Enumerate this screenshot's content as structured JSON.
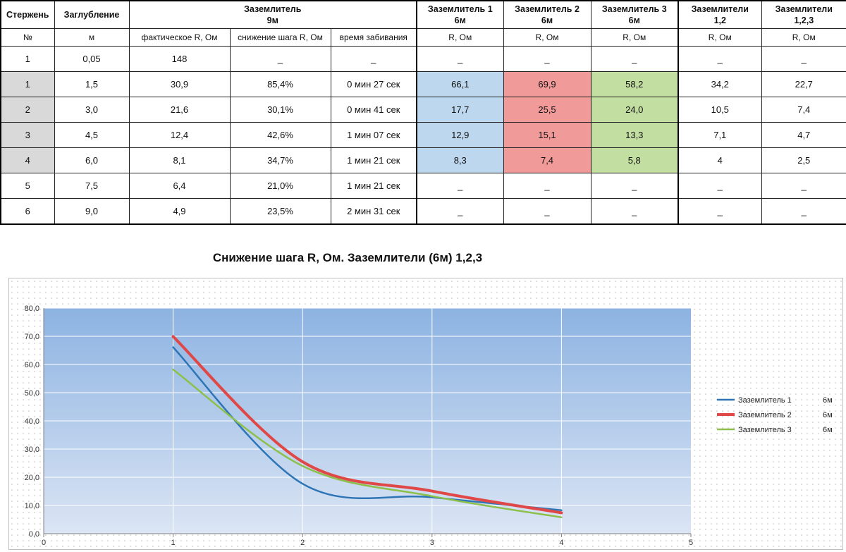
{
  "table": {
    "headers": {
      "rod": "Стержень",
      "depth": "Заглубление",
      "rod9_title": "Заземлитель",
      "rod9_len": "9м",
      "g1_title": "Заземлитель 1",
      "g1_len": "6м",
      "g2_title": "Заземлитель 2",
      "g2_len": "6м",
      "g3_title": "Заземлитель 3",
      "g3_len": "6м",
      "g12_title": "Заземлители",
      "g12_sub": "1,2",
      "g123_title": "Заземлители",
      "g123_sub": "1,2,3"
    },
    "subheaders": {
      "num": "№",
      "unit_m": "м",
      "actual_r": "фактическое R, Ом",
      "step_r": "снижение шага R, Ом",
      "time": "время забивания",
      "r1": "R, Ом",
      "r2": "R, Ом",
      "r3": "R, Ом",
      "r12": "R, Ом",
      "r123": "R, Ом"
    },
    "rows": [
      {
        "num": "1",
        "depth": "0,05",
        "actual": "148",
        "step": "_",
        "time": "_",
        "g1": "_",
        "g2": "_",
        "g3": "_",
        "g12": "_",
        "g123": "_"
      },
      {
        "num": "1",
        "depth": "1,5",
        "actual": "30,9",
        "step": "85,4%",
        "time": "0 мин 27 сек",
        "g1": "66,1",
        "g2": "69,9",
        "g3": "58,2",
        "g12": "34,2",
        "g123": "22,7"
      },
      {
        "num": "2",
        "depth": "3,0",
        "actual": "21,6",
        "step": "30,1%",
        "time": "0 мин 41 сек",
        "g1": "17,7",
        "g2": "25,5",
        "g3": "24,0",
        "g12": "10,5",
        "g123": "7,4"
      },
      {
        "num": "3",
        "depth": "4,5",
        "actual": "12,4",
        "step": "42,6%",
        "time": "1 мин 07 сек",
        "g1": "12,9",
        "g2": "15,1",
        "g3": "13,3",
        "g12": "7,1",
        "g123": "4,7"
      },
      {
        "num": "4",
        "depth": "6,0",
        "actual": "8,1",
        "step": "34,7%",
        "time": "1 мин 21 сек",
        "g1": "8,3",
        "g2": "7,4",
        "g3": "5,8",
        "g12": "4",
        "g123": "2,5"
      },
      {
        "num": "5",
        "depth": "7,5",
        "actual": "6,4",
        "step": "21,0%",
        "time": "1 мин 21 сек",
        "g1": "_",
        "g2": "_",
        "g3": "_",
        "g12": "_",
        "g123": "_"
      },
      {
        "num": "6",
        "depth": "9,0",
        "actual": "4,9",
        "step": "23,5%",
        "time": "2 мин 31 сек",
        "g1": "_",
        "g2": "_",
        "g3": "_",
        "g12": "_",
        "g123": "_"
      }
    ]
  },
  "chart_data": {
    "type": "line",
    "title": "Снижение шага R, Ом. Заземлители (6м) 1,2,3",
    "x": [
      1,
      2,
      3,
      4
    ],
    "xlim": [
      0,
      5
    ],
    "xticks": [
      "0",
      "1",
      "2",
      "3",
      "4",
      "5"
    ],
    "ylim": [
      0,
      80
    ],
    "yticks": [
      "0,0",
      "10,0",
      "20,0",
      "30,0",
      "40,0",
      "50,0",
      "60,0",
      "70,0",
      "80,0"
    ],
    "series": [
      {
        "name": "Заземлитель 1",
        "suffix": "6м",
        "color": "#2e75b6",
        "width": 2.5,
        "values": [
          66.1,
          17.7,
          12.9,
          8.3
        ]
      },
      {
        "name": "Заземлитель 2",
        "suffix": "6м",
        "color": "#e04848",
        "width": 4,
        "values": [
          69.9,
          25.5,
          15.1,
          7.4
        ]
      },
      {
        "name": "Заземлитель 3",
        "suffix": "6м",
        "color": "#8dc04a",
        "width": 2.5,
        "values": [
          58.2,
          24.0,
          13.3,
          5.8
        ]
      }
    ],
    "legend_position": "right",
    "plot_gradient": [
      "#8db3e2",
      "#dbe5f4"
    ],
    "grid": true
  }
}
